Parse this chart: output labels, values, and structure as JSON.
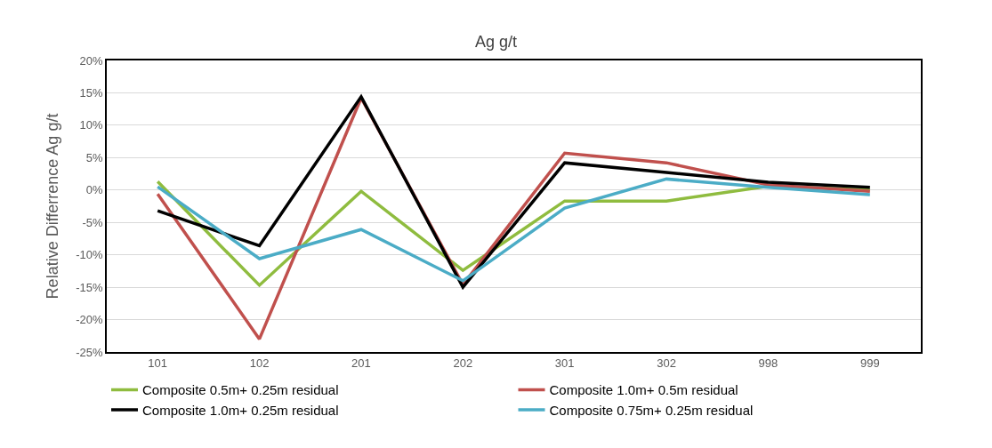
{
  "chart_data": {
    "type": "line",
    "title": "Ag g/t",
    "ylabel": "Relative Differrence Ag g/t",
    "categories": [
      "101",
      "102",
      "201",
      "202",
      "301",
      "302",
      "998",
      "999"
    ],
    "series": [
      {
        "name": "Composite 0.5m+ 0.25m residual",
        "color": "#8fbc3f",
        "values": [
          1.3,
          -14.7,
          -0.2,
          -12.4,
          -1.7,
          -1.7,
          0.6,
          0
        ]
      },
      {
        "name": "Composite 1.0m+ 0.5m residual",
        "color": "#c0504d",
        "values": [
          -0.6,
          -23,
          14.2,
          -14.6,
          5.7,
          4.2,
          0.8,
          -0.2
        ]
      },
      {
        "name": "Composite 1.0m+ 0.25m residual",
        "color": "#000000",
        "values": [
          -3.2,
          -8.6,
          14.4,
          -15,
          4.2,
          2.7,
          1.2,
          0.4
        ]
      },
      {
        "name": "Composite 0.75m+ 0.25m residual",
        "color": "#4bacc6",
        "values": [
          0.5,
          -10.6,
          -6.1,
          -14,
          -2.8,
          1.7,
          0.4,
          -0.7
        ]
      }
    ],
    "ylim": [
      -25,
      20
    ],
    "yticks": [
      {
        "value": -25,
        "label": "-25%"
      },
      {
        "value": -20,
        "label": "-20%"
      },
      {
        "value": -15,
        "label": "-15%"
      },
      {
        "value": -10,
        "label": "-10%"
      },
      {
        "value": -5,
        "label": "-5%"
      },
      {
        "value": 0,
        "label": "0%"
      },
      {
        "value": 5,
        "label": "5%"
      },
      {
        "value": 10,
        "label": "10%"
      },
      {
        "value": 15,
        "label": "15%"
      },
      {
        "value": 20,
        "label": "20%"
      }
    ],
    "grid": "y",
    "legend": "bottom",
    "marker": "none",
    "line_style": "solid"
  }
}
